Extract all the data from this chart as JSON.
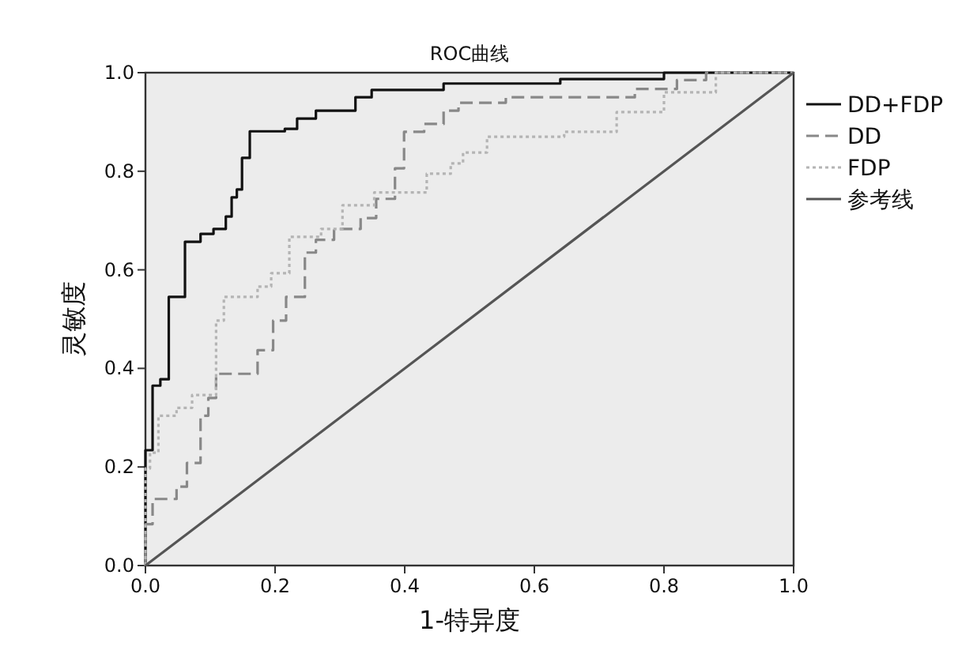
{
  "chart_data": {
    "type": "step",
    "title": "ROC曲线",
    "xlabel": "1-特异度",
    "ylabel": "灵敏度",
    "xlim": [
      0,
      1
    ],
    "ylim": [
      0,
      1
    ],
    "xticks": [
      {
        "value": 0,
        "label": "0.0"
      },
      {
        "value": 0.2,
        "label": "0.2"
      },
      {
        "value": 0.4,
        "label": "0.4"
      },
      {
        "value": 0.6,
        "label": "0.6"
      },
      {
        "value": 0.8,
        "label": "0.8"
      },
      {
        "value": 1,
        "label": "1.0"
      }
    ],
    "yticks": [
      {
        "value": 0,
        "label": "0.0"
      },
      {
        "value": 0.2,
        "label": "0.2"
      },
      {
        "value": 0.4,
        "label": "0.4"
      },
      {
        "value": 0.6,
        "label": "0.6"
      },
      {
        "value": 0.8,
        "label": "0.8"
      },
      {
        "value": 1,
        "label": "1.0"
      }
    ],
    "grid": false,
    "legend": "top right",
    "series": [
      {
        "name": "DD+FDP",
        "color": "#111111",
        "line_style": "solid",
        "x": [
          0,
          0,
          0.011,
          0.023,
          0.036,
          0.061,
          0.085,
          0.105,
          0.124,
          0.133,
          0.141,
          0.149,
          0.161,
          0.215,
          0.234,
          0.263,
          0.324,
          0.349,
          0.46,
          0.64,
          0.8,
          1
        ],
        "values": [
          0,
          0.234,
          0.365,
          0.378,
          0.545,
          0.657,
          0.673,
          0.683,
          0.708,
          0.747,
          0.763,
          0.827,
          0.881,
          0.886,
          0.907,
          0.923,
          0.95,
          0.965,
          0.978,
          0.987,
          1,
          1
        ]
      },
      {
        "name": "DD",
        "color": "#888888",
        "line_style": "dashed",
        "x": [
          0,
          0,
          0.011,
          0.048,
          0.064,
          0.085,
          0.097,
          0.109,
          0.173,
          0.197,
          0.217,
          0.246,
          0.263,
          0.291,
          0.332,
          0.356,
          0.385,
          0.399,
          0.43,
          0.46,
          0.483,
          0.556,
          0.755,
          0.82,
          0.865,
          1
        ],
        "values": [
          0,
          0.084,
          0.135,
          0.16,
          0.208,
          0.304,
          0.34,
          0.389,
          0.437,
          0.497,
          0.545,
          0.635,
          0.661,
          0.683,
          0.705,
          0.744,
          0.806,
          0.88,
          0.896,
          0.923,
          0.939,
          0.95,
          0.967,
          0.985,
          1,
          1
        ]
      },
      {
        "name": "FDP",
        "color": "#b4b4b4",
        "line_style": "dotted",
        "x": [
          0,
          0,
          0.007,
          0.02,
          0.048,
          0.072,
          0.109,
          0.121,
          0.173,
          0.194,
          0.222,
          0.271,
          0.304,
          0.353,
          0.434,
          0.471,
          0.49,
          0.527,
          0.646,
          0.727,
          0.8,
          0.88,
          1
        ],
        "values": [
          0,
          0.197,
          0.229,
          0.304,
          0.32,
          0.346,
          0.497,
          0.545,
          0.566,
          0.593,
          0.667,
          0.683,
          0.731,
          0.757,
          0.795,
          0.816,
          0.838,
          0.87,
          0.88,
          0.92,
          0.96,
          1,
          1
        ]
      },
      {
        "name": "参考线",
        "type": "line",
        "color": "#555555",
        "line_style": "solid",
        "x": [
          0,
          1
        ],
        "values": [
          0,
          1
        ]
      }
    ]
  }
}
